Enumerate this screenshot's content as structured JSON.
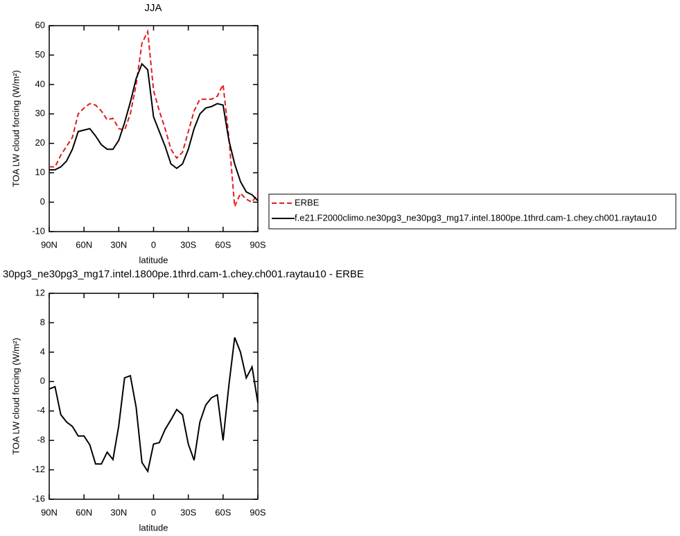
{
  "chart_data": [
    {
      "type": "line",
      "title": "JJA",
      "xlabel": "latitude",
      "ylabel": "TOA LW cloud forcing (W/m²)",
      "x": [
        90,
        85,
        80,
        75,
        70,
        65,
        60,
        55,
        50,
        45,
        40,
        35,
        30,
        25,
        20,
        15,
        10,
        5,
        0,
        -5,
        -10,
        -15,
        -20,
        -25,
        -30,
        -35,
        -40,
        -45,
        -50,
        -55,
        -60,
        -65,
        -70,
        -75,
        -80,
        -85,
        -90
      ],
      "series": [
        {
          "name": "ERBE",
          "color": "#e41a1c",
          "dashed": true,
          "values": [
            12,
            12,
            16,
            19,
            22,
            30,
            32,
            33.5,
            33,
            31,
            28,
            28.5,
            25,
            24.5,
            30,
            40,
            54,
            58,
            38,
            31,
            25,
            18,
            15,
            17,
            24,
            31,
            35,
            35,
            35,
            36,
            40,
            22,
            -1.5,
            3,
            1,
            0,
            3
          ]
        },
        {
          "name": "f.e21.F2000climo.ne30pg3_ne30pg3_mg17.intel.1800pe.1thrd.cam-1.chey.ch001.raytau10",
          "color": "#000000",
          "dashed": false,
          "values": [
            11,
            11,
            12,
            14,
            18,
            24,
            24.5,
            25,
            22.5,
            19.5,
            18,
            18,
            21,
            27,
            34,
            42,
            47,
            45,
            29,
            24,
            19,
            13,
            11.5,
            13,
            18,
            25,
            30,
            32,
            32.5,
            33.5,
            33,
            21,
            13,
            7,
            3.5,
            2.5,
            0.5
          ]
        }
      ],
      "xlim": [
        90,
        -90
      ],
      "xticks": [
        {
          "value": 90,
          "label": "90N"
        },
        {
          "value": 60,
          "label": "60N"
        },
        {
          "value": 30,
          "label": "30N"
        },
        0,
        {
          "value": -30,
          "label": "30S"
        },
        {
          "value": -60,
          "label": "60S"
        },
        {
          "value": -90,
          "label": "90S"
        }
      ],
      "ylim": [
        -10,
        60
      ],
      "yticks": [
        -10,
        0,
        10,
        20,
        30,
        40,
        50,
        60
      ]
    },
    {
      "type": "line",
      "title": "30pg3_ne30pg3_mg17.intel.1800pe.1thrd.cam-1.chey.ch001.raytau10 - ERBE",
      "xlabel": "latitude",
      "ylabel": "TOA LW cloud forcing (W/m²)",
      "x": [
        90,
        85,
        80,
        75,
        70,
        65,
        60,
        55,
        50,
        45,
        40,
        35,
        30,
        25,
        20,
        15,
        10,
        5,
        0,
        -5,
        -10,
        -15,
        -20,
        -25,
        -30,
        -35,
        -40,
        -45,
        -50,
        -55,
        -60,
        -65,
        -70,
        -75,
        -80,
        -85,
        -90
      ],
      "color": "#000000",
      "values": [
        -1,
        -0.7,
        -4.5,
        -5.5,
        -6.1,
        -7.4,
        -7.4,
        -8.6,
        -11.2,
        -11.2,
        -9.6,
        -10.6,
        -6,
        0.5,
        0.8,
        -3.5,
        -11,
        -12.2,
        -8.5,
        -8.3,
        -6.5,
        -5.2,
        -3.8,
        -4.5,
        -8.5,
        -10.7,
        -5.5,
        -3.2,
        -2.2,
        -1.8,
        -8,
        -0.5,
        6,
        4,
        0.5,
        2,
        -2.9
      ],
      "xlim": [
        90,
        -90
      ],
      "xticks": [
        {
          "value": 90,
          "label": "90N"
        },
        {
          "value": 60,
          "label": "60N"
        },
        {
          "value": 30,
          "label": "30N"
        },
        0,
        {
          "value": -30,
          "label": "30S"
        },
        {
          "value": -60,
          "label": "60S"
        },
        {
          "value": -90,
          "label": "90S"
        }
      ],
      "ylim": [
        -16,
        12
      ],
      "yticks": [
        -16,
        -12,
        -8,
        -4,
        0,
        4,
        8,
        12
      ]
    }
  ]
}
